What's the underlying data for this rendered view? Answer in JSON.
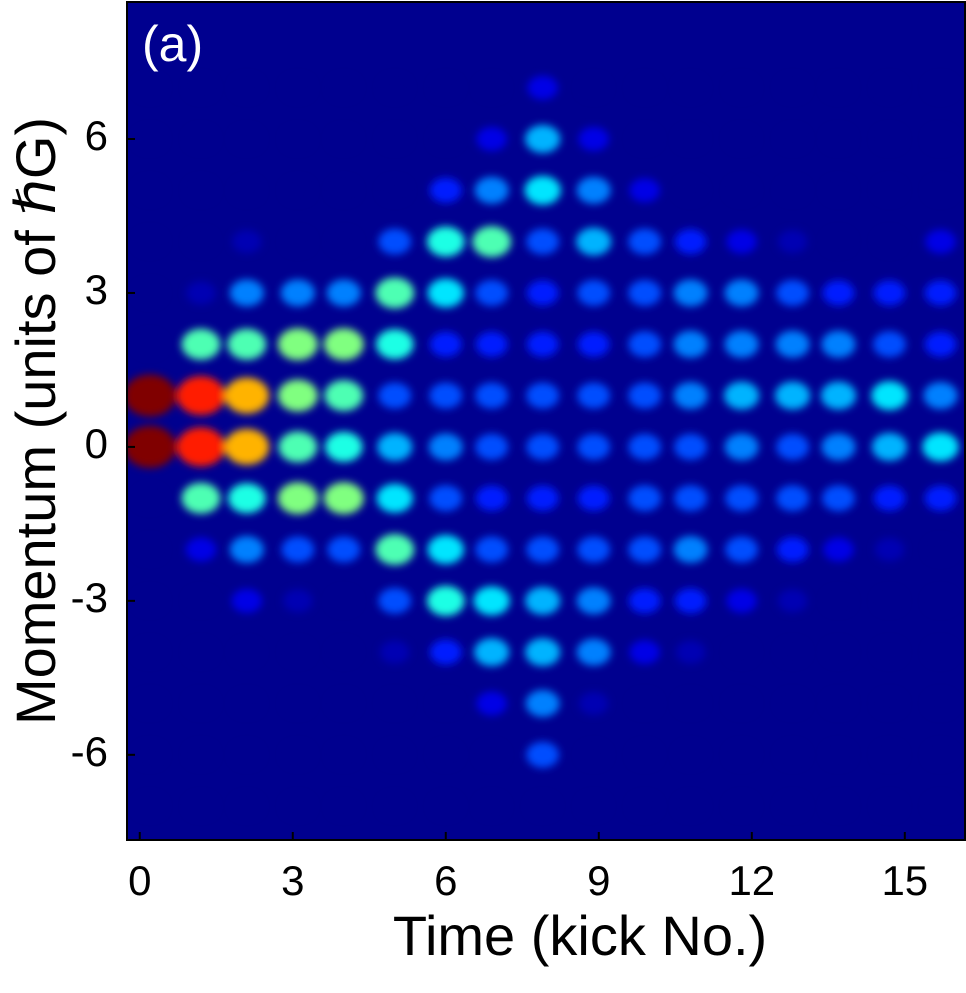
{
  "chart_data": {
    "type": "heatmap",
    "annotation": "(a)",
    "x_label": "Time (kick No.)",
    "y_label": "Momentum (units of ℏG)",
    "xlim": [
      -0.25,
      16.18
    ],
    "ylim": [
      -7.66,
      8.67
    ],
    "xticks": [
      0,
      3,
      6,
      9,
      12,
      15
    ],
    "yticks": [
      -6,
      -3,
      0,
      3,
      6
    ],
    "x": [
      0.2,
      1.2,
      2.1,
      3.1,
      4.0,
      5.0,
      6.0,
      6.9,
      7.9,
      8.9,
      9.9,
      10.8,
      11.8,
      12.8,
      13.7,
      14.7,
      15.7
    ],
    "y": [
      7,
      6,
      5,
      4,
      3,
      2,
      1,
      0,
      -1,
      -2,
      -3,
      -4,
      -5,
      -6,
      -7
    ],
    "colormap": "jet",
    "background": "#00008f",
    "values": [
      [
        0,
        0,
        0,
        0,
        0,
        0,
        1.0,
        1.0,
        0,
        0,
        0,
        0,
        0,
        0,
        0
      ],
      [
        0,
        0,
        0,
        0,
        0.05,
        0.45,
        0.85,
        0.85,
        0.45,
        0.1,
        0,
        0,
        0,
        0,
        0
      ],
      [
        0,
        0,
        0,
        0.05,
        0.25,
        0.45,
        0.7,
        0.7,
        0.4,
        0.25,
        0.1,
        0,
        0,
        0,
        0
      ],
      [
        0,
        0,
        0,
        0,
        0.25,
        0.5,
        0.5,
        0.45,
        0.5,
        0.2,
        0.05,
        0,
        0,
        0,
        0
      ],
      [
        0,
        0,
        0,
        0,
        0.25,
        0.5,
        0.45,
        0.4,
        0.5,
        0.2,
        0,
        0,
        0,
        0,
        0
      ],
      [
        0,
        0,
        0,
        0.2,
        0.45,
        0.4,
        0.2,
        0.3,
        0.35,
        0.45,
        0.2,
        0.05,
        0,
        0,
        0
      ],
      [
        0,
        0,
        0.15,
        0.4,
        0.35,
        0.15,
        0.2,
        0.25,
        0.2,
        0.35,
        0.4,
        0.15,
        0,
        0,
        0
      ],
      [
        0,
        0.1,
        0.25,
        0.45,
        0.2,
        0.15,
        0.2,
        0.2,
        0.15,
        0.2,
        0.35,
        0.3,
        0.1,
        0,
        0
      ],
      [
        0.1,
        0.3,
        0.35,
        0.2,
        0.15,
        0.15,
        0.2,
        0.2,
        0.15,
        0.2,
        0.3,
        0.3,
        0.25,
        0.2,
        0
      ],
      [
        0,
        0.1,
        0.25,
        0.3,
        0.2,
        0.15,
        0.2,
        0.2,
        0.15,
        0.2,
        0.25,
        0.25,
        0.05,
        0,
        0
      ],
      [
        0,
        0,
        0.1,
        0.2,
        0.2,
        0.2,
        0.2,
        0.2,
        0.2,
        0.2,
        0.15,
        0.1,
        0,
        0,
        0
      ],
      [
        0,
        0,
        0,
        0.15,
        0.25,
        0.25,
        0.25,
        0.2,
        0.2,
        0.25,
        0.15,
        0.05,
        0,
        0,
        0
      ],
      [
        0,
        0,
        0,
        0.1,
        0.25,
        0.25,
        0.3,
        0.25,
        0.2,
        0.2,
        0.1,
        0,
        0,
        0,
        0
      ],
      [
        0,
        0,
        0,
        0.05,
        0.2,
        0.25,
        0.3,
        0.2,
        0.2,
        0.15,
        0.05,
        0,
        0,
        0,
        0
      ],
      [
        0,
        0,
        0,
        0,
        0.15,
        0.25,
        0.3,
        0.25,
        0.2,
        0.1,
        0,
        0,
        0,
        0,
        0
      ],
      [
        0,
        0,
        0,
        0,
        0.15,
        0.2,
        0.35,
        0.3,
        0.15,
        0.05,
        0,
        0,
        0,
        0,
        0
      ],
      [
        0,
        0,
        0,
        0.1,
        0.15,
        0.15,
        0.25,
        0.35,
        0.15,
        0,
        0,
        0,
        0,
        0,
        0
      ]
    ]
  }
}
